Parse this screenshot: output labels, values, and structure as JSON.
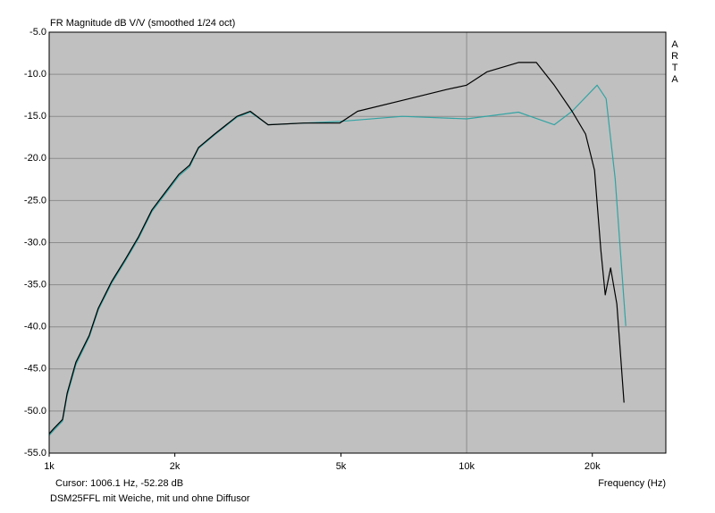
{
  "chart_data": {
    "type": "line",
    "title": "FR Magnitude dB V/V (smoothed 1/24 oct)",
    "watermark": "ARTA",
    "cursor": "Cursor: 1006.1 Hz, -52.28 dB",
    "description": "DSM25FFL mit Weiche, mit und ohne Diffusor",
    "x_label": "Frequency (Hz)",
    "x_scale": "log",
    "xlim": [
      1000,
      30000
    ],
    "xticks": [
      {
        "value": 1000,
        "label": "1k"
      },
      {
        "value": 2000,
        "label": "2k"
      },
      {
        "value": 5000,
        "label": "5k"
      },
      {
        "value": 10000,
        "label": "10k"
      },
      {
        "value": 20000,
        "label": "20k"
      }
    ],
    "ylim": [
      -55,
      -5
    ],
    "yticks": [
      {
        "value": -55,
        "label": "-55.0"
      },
      {
        "value": -50,
        "label": "-50.0"
      },
      {
        "value": -45,
        "label": "-45.0"
      },
      {
        "value": -40,
        "label": "-40.0"
      },
      {
        "value": -35,
        "label": "-35.0"
      },
      {
        "value": -30,
        "label": "-30.0"
      },
      {
        "value": -25,
        "label": "-25.0"
      },
      {
        "value": -20,
        "label": "-20.0"
      },
      {
        "value": -15,
        "label": "-15.0"
      },
      {
        "value": -10,
        "label": "-10.0"
      },
      {
        "value": -5,
        "label": "-5.0"
      }
    ],
    "grid": true,
    "series": [
      {
        "color": "#000000",
        "x": [
          1000,
          1025,
          1077,
          1104,
          1159,
          1248,
          1311,
          1412,
          1521,
          1637,
          1763,
          1898,
          2044,
          2169,
          2279,
          2490,
          2817,
          3032,
          3346,
          4076,
          4965,
          5481,
          7014,
          8973,
          10000,
          11200,
          13310,
          14690,
          16210,
          17890,
          19270,
          20240,
          20960,
          21480,
          22120,
          22900,
          23820
        ],
        "values": [
          -52.7,
          -52.1,
          -51,
          -47.9,
          -44.2,
          -41,
          -37.8,
          -34.6,
          -32,
          -29.3,
          -26.1,
          -24,
          -21.9,
          -20.8,
          -18.7,
          -17.1,
          -15,
          -14.4,
          -16,
          -15.8,
          -15.8,
          -14.4,
          -13.1,
          -11.8,
          -11.3,
          -9.7,
          -8.6,
          -8.6,
          -11.3,
          -14.4,
          -17.1,
          -21.4,
          -30.9,
          -36.2,
          -33,
          -37.3,
          -49
        ]
      },
      {
        "color": "#33a3a3",
        "x": [
          1000,
          1025,
          1077,
          1104,
          1159,
          1248,
          1311,
          1412,
          1521,
          1637,
          1763,
          1898,
          2044,
          2169,
          2279,
          2490,
          2817,
          3032,
          3346,
          4076,
          4965,
          7014,
          10000,
          13310,
          16210,
          17890,
          20540,
          21580,
          22680,
          24060
        ],
        "values": [
          -52.9,
          -52.3,
          -51.2,
          -48.2,
          -44.5,
          -41.2,
          -38,
          -34.8,
          -32.2,
          -29.5,
          -26.3,
          -24.2,
          -22.1,
          -21,
          -18.8,
          -17.2,
          -15.1,
          -14.5,
          -16,
          -15.8,
          -15.6,
          -15,
          -15.3,
          -14.5,
          -16,
          -14.4,
          -11.3,
          -12.9,
          -22.4,
          -39.9
        ]
      }
    ]
  }
}
